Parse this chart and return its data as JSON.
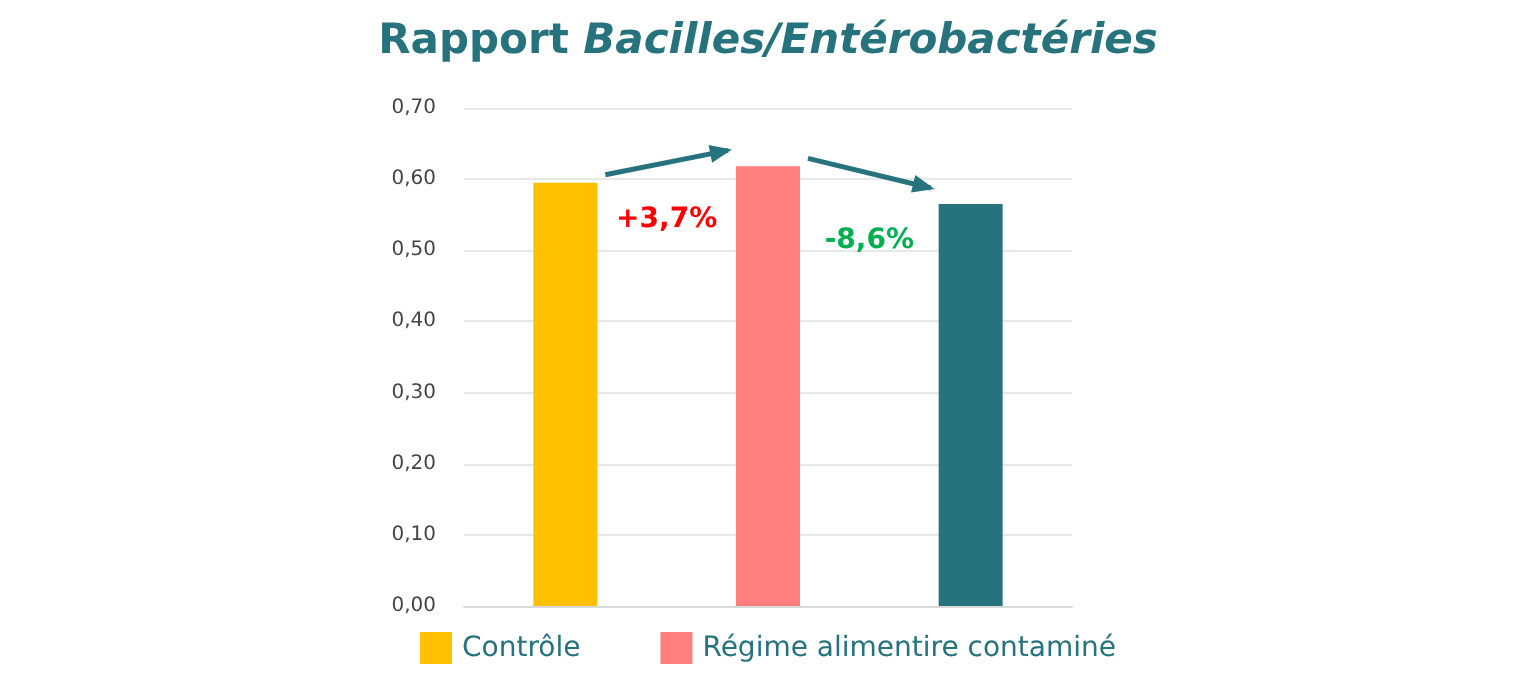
{
  "chart_data": {
    "type": "bar",
    "title": "Rapport Bacilles/Entérobactéries",
    "categories": [
      null,
      null,
      null
    ],
    "series": [
      {
        "name": "Contrôle",
        "color": "#ffc000",
        "values": [
          0.595,
          null,
          null
        ]
      },
      {
        "name": "Régime alimentire contaminé",
        "color": "#ff7f7f",
        "values": [
          null,
          0.618,
          null
        ]
      },
      {
        "color": "#26737d",
        "values": [
          null,
          null,
          0.565
        ]
      }
    ],
    "ylim": [
      0,
      0.7
    ],
    "yticks": [
      {
        "value": 0,
        "label": "0,00"
      },
      {
        "value": 0.1,
        "label": "0,10"
      },
      {
        "value": 0.2,
        "label": "0,20"
      },
      {
        "value": 0.3,
        "label": "0,30"
      },
      {
        "value": 0.4,
        "label": "0,40"
      },
      {
        "value": 0.5,
        "label": "0,50"
      },
      {
        "value": 0.6,
        "label": "0,60"
      },
      {
        "value": 0.7,
        "label": "0,70"
      }
    ],
    "annotations": [
      "+3,7%",
      "-8,6%"
    ],
    "grid": "y",
    "legend": "bottom"
  }
}
